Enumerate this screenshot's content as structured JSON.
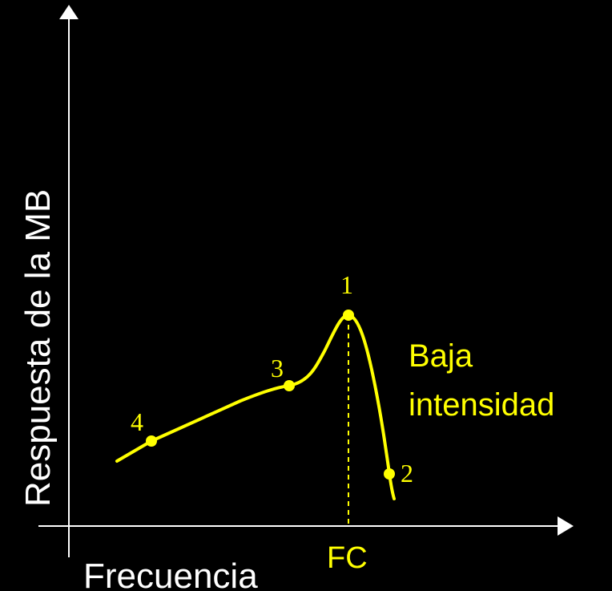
{
  "diagram": {
    "y_axis_label": "Respuesta de la MB",
    "x_axis_label": "Frecuencia",
    "fc_label": "FC",
    "curve_label_line1": "Baja",
    "curve_label_line2": "intensidad",
    "points": [
      {
        "id": "point-1",
        "label": "1"
      },
      {
        "id": "point-2",
        "label": "2"
      },
      {
        "id": "point-3",
        "label": "3"
      },
      {
        "id": "point-4",
        "label": "4"
      }
    ]
  },
  "colors": {
    "background": "#000000",
    "axis": "#ffffff",
    "curve": "#ffff00",
    "text_white": "#ffffff",
    "text_yellow": "#ffff00"
  }
}
